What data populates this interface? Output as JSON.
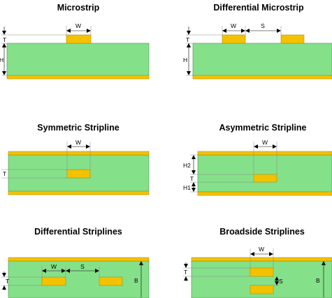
{
  "titles": {
    "microstrip": "Microstrip",
    "diff_microstrip": "Differential Microstrip",
    "sym_stripline": "Symmetric Stripline",
    "asym_stripline": "Asymmetric Stripline",
    "diff_striplines": "Differential Striplines",
    "broadside_striplines": "Broadside Striplines"
  },
  "labels": {
    "w": "W",
    "s": "S",
    "t": "T",
    "h": "H",
    "h1": "H1",
    "h2": "H2",
    "b": "B"
  },
  "colors": {
    "substrate": "#85e08a",
    "copper": "#f2c200"
  }
}
